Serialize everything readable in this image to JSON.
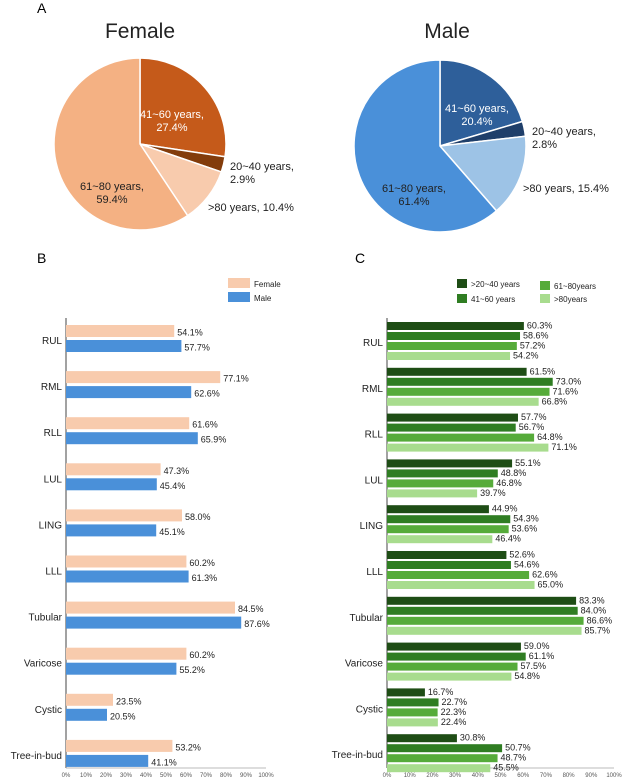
{
  "panel_labels": {
    "a": "A",
    "b": "B",
    "c": "C"
  },
  "chart_data": [
    {
      "id": "female-pie",
      "type": "pie",
      "title": "Female",
      "slices": [
        {
          "label": "41~60 years",
          "value": 27.4,
          "text1": "41~60 years,",
          "text2": "27.4%",
          "color": "#c55a1a"
        },
        {
          "label": "20~40 years",
          "value": 2.9,
          "text1": "20~40 years,",
          "text2": "2.9%",
          "color": "#833c0b"
        },
        {
          "label": ">80 years",
          "value": 10.4,
          "text1": ">80 years, 10.4%",
          "text2": "",
          "color": "#f8cbad"
        },
        {
          "label": "61~80 years",
          "value": 59.4,
          "text1": "61~80 years,",
          "text2": "59.4%",
          "color": "#f4b183"
        }
      ]
    },
    {
      "id": "male-pie",
      "type": "pie",
      "title": "Male",
      "slices": [
        {
          "label": "41~60 years",
          "value": 20.4,
          "text1": "41~60 years,",
          "text2": "20.4%",
          "color": "#2e5f9a"
        },
        {
          "label": "20~40 years",
          "value": 2.8,
          "text1": "20~40 years,",
          "text2": "2.8%",
          "color": "#1f3f6a"
        },
        {
          "label": ">80 years",
          "value": 15.4,
          "text1": ">80 years, 15.4%",
          "text2": "",
          "color": "#9dc3e6"
        },
        {
          "label": "61~80 years",
          "value": 61.4,
          "text1": "61~80 years,",
          "text2": "61.4%",
          "color": "#4a90d9"
        }
      ]
    },
    {
      "id": "sex-bars",
      "type": "bar",
      "orientation": "horizontal",
      "categories": [
        "RUL",
        "RML",
        "RLL",
        "LUL",
        "LING",
        "LLL",
        "Tubular",
        "Varicose",
        "Cystic",
        "Tree-in-bud"
      ],
      "series": [
        {
          "name": "Female",
          "color": "#f8cbad",
          "values": [
            54.1,
            77.1,
            61.6,
            47.3,
            58.0,
            60.2,
            84.5,
            60.2,
            23.5,
            53.2
          ]
        },
        {
          "name": "Male",
          "color": "#4a90d9",
          "values": [
            57.7,
            62.6,
            65.9,
            45.4,
            45.1,
            61.3,
            87.6,
            55.2,
            20.5,
            41.1
          ]
        }
      ],
      "xlim": [
        0,
        100
      ],
      "ticks": [
        "0%",
        "10%",
        "20%",
        "30%",
        "40%",
        "50%",
        "60%",
        "70%",
        "80%",
        "90%",
        "100%"
      ],
      "legend": "top-right"
    },
    {
      "id": "age-bars",
      "type": "bar",
      "orientation": "horizontal",
      "categories": [
        "RUL",
        "RML",
        "RLL",
        "LUL",
        "LING",
        "LLL",
        "Tubular",
        "Varicose",
        "Cystic",
        "Tree-in-bud"
      ],
      "series": [
        {
          "name": ">20~40 years",
          "color": "#1e4d15",
          "values": [
            60.3,
            61.5,
            57.7,
            55.1,
            44.9,
            52.6,
            83.3,
            59.0,
            16.7,
            30.8
          ]
        },
        {
          "name": "41~60 years",
          "color": "#2f7d22",
          "values": [
            58.6,
            73.0,
            56.7,
            48.8,
            54.3,
            54.6,
            84.0,
            61.1,
            22.7,
            50.7
          ]
        },
        {
          "name": "61~80years",
          "color": "#56ab3a",
          "values": [
            57.2,
            71.6,
            64.8,
            46.8,
            53.6,
            62.6,
            86.6,
            57.5,
            22.3,
            48.7
          ]
        },
        {
          "name": ">80years",
          "color": "#a8dc8e",
          "values": [
            54.2,
            66.8,
            71.1,
            39.7,
            46.4,
            65.0,
            85.7,
            54.8,
            22.4,
            45.5
          ]
        }
      ],
      "xlim": [
        0,
        100
      ],
      "ticks": [
        "0%",
        "10%",
        "20%",
        "30%",
        "40%",
        "50%",
        "60%",
        "70%",
        "80%",
        "90%",
        "100%"
      ],
      "legend": "top-right"
    }
  ]
}
